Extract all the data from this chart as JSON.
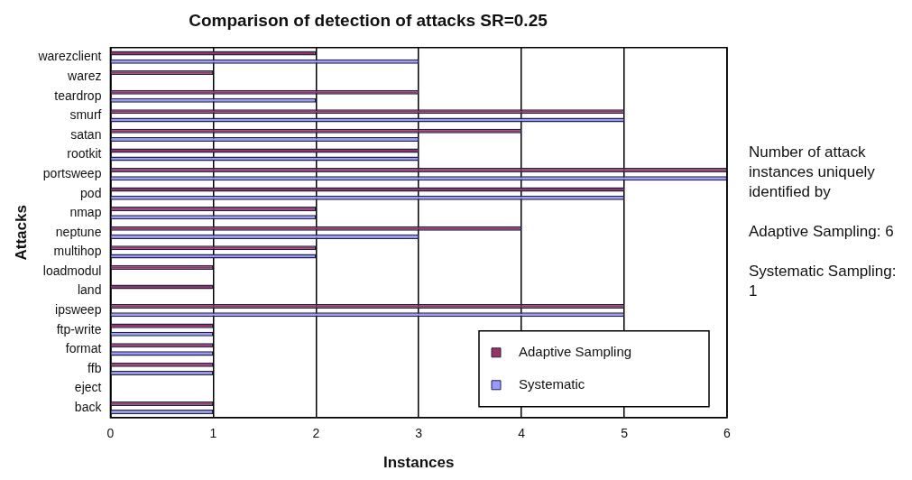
{
  "chart_data": {
    "type": "bar",
    "orientation": "horizontal",
    "title": "Comparison of detection of attacks SR=0.25",
    "xlabel": "Instances",
    "ylabel": "Attacks",
    "categories": [
      "warezclient",
      "warez",
      "teardrop",
      "smurf",
      "satan",
      "rootkit",
      "portsweep",
      "pod",
      "nmap",
      "neptune",
      "multihop",
      "loadmodul",
      "land",
      "ipsweep",
      "ftp-write",
      "format",
      "ffb",
      "eject",
      "back"
    ],
    "series": [
      {
        "name": "Adaptive Sampling",
        "color": "#993366",
        "values": [
          2,
          1,
          3,
          5,
          4,
          3,
          6,
          5,
          2,
          4,
          2,
          1,
          1,
          5,
          1,
          1,
          1,
          0,
          1
        ]
      },
      {
        "name": "Systematic",
        "color": "#9999ff",
        "values": [
          3,
          0,
          2,
          5,
          3,
          3,
          6,
          5,
          2,
          3,
          2,
          0,
          0,
          5,
          1,
          1,
          1,
          0,
          1
        ]
      }
    ],
    "xlim": [
      0,
      6
    ],
    "xticks": [
      0,
      1,
      2,
      3,
      4,
      5,
      6
    ],
    "grid": "x",
    "legend": "bottom right",
    "annotations": [
      "Number of attack instances uniquely identified by",
      "Adaptive Sampling: 6",
      "Systematic Sampling: 1"
    ]
  }
}
